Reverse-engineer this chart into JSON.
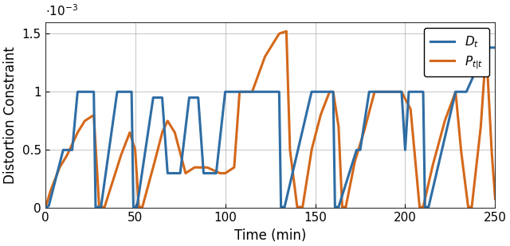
{
  "xlabel": "Time (min)",
  "ylabel": "Distortion Constraint",
  "xlim": [
    0,
    250
  ],
  "ylim": [
    0,
    0.0016
  ],
  "ytick_vals": [
    0.0,
    0.0005,
    0.001,
    0.0015
  ],
  "ytick_labels": [
    "0",
    "0.5",
    "1",
    "1.5"
  ],
  "xtick_vals": [
    0,
    50,
    100,
    150,
    200,
    250
  ],
  "color_D": "#2e6da4",
  "color_P": "#d4681a",
  "linewidth": 2.2,
  "legend_D": "$D_t$",
  "legend_P": "$P_{t|t}$",
  "figsize": [
    6.4,
    3.09
  ],
  "dpi": 100,
  "grid_color": "#aaaaaa",
  "grid_alpha": 0.8,
  "grid_lw": 0.6
}
